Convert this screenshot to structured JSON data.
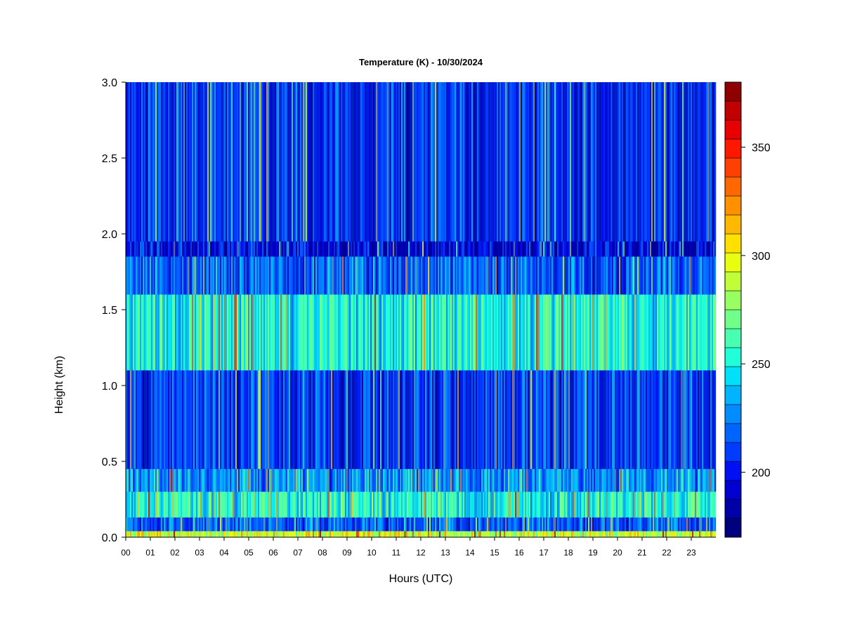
{
  "chart_data": {
    "type": "heatmap",
    "title": "Temperature (K) - 10/30/2024",
    "xlabel": "Hours (UTC)",
    "ylabel": "Height (km)",
    "x_ticks": [
      "00",
      "01",
      "02",
      "03",
      "04",
      "05",
      "06",
      "07",
      "08",
      "09",
      "10",
      "11",
      "12",
      "13",
      "14",
      "15",
      "16",
      "17",
      "18",
      "19",
      "20",
      "21",
      "22",
      "23"
    ],
    "xlim": [
      0,
      24
    ],
    "y_ticks": [
      "0.0",
      "0.5",
      "1.0",
      "1.5",
      "2.0",
      "2.5",
      "3.0"
    ],
    "ylim": [
      0,
      3.0
    ],
    "colorbar": {
      "ticks": [
        "200",
        "250",
        "300",
        "350"
      ],
      "tick_values": [
        200,
        250,
        300,
        350
      ],
      "range": [
        170,
        380
      ],
      "levels": [
        "#00007f",
        "#0000a8",
        "#0000d0",
        "#0010f4",
        "#003cff",
        "#0064ff",
        "#008cff",
        "#00b4ff",
        "#00e0f8",
        "#20ffd8",
        "#48ffb0",
        "#70ff88",
        "#98ff60",
        "#c0ff38",
        "#e8ff10",
        "#ffe000",
        "#ffb800",
        "#ff9000",
        "#ff6800",
        "#ff4000",
        "#ff1800",
        "#e80000",
        "#c00000",
        "#8f0000"
      ]
    },
    "grid": false,
    "height_bands_km": [
      {
        "from": 0.0,
        "to": 0.04,
        "mean_k": 290
      },
      {
        "from": 0.04,
        "to": 0.13,
        "mean_k": 215
      },
      {
        "from": 0.13,
        "to": 0.3,
        "mean_k": 250
      },
      {
        "from": 0.3,
        "to": 0.45,
        "mean_k": 230
      },
      {
        "from": 0.45,
        "to": 1.1,
        "mean_k": 205
      },
      {
        "from": 1.1,
        "to": 1.6,
        "mean_k": 250
      },
      {
        "from": 1.6,
        "to": 1.85,
        "mean_k": 215
      },
      {
        "from": 1.85,
        "to": 1.95,
        "mean_k": 195
      },
      {
        "from": 1.95,
        "to": 3.0,
        "mean_k": 205
      }
    ]
  }
}
